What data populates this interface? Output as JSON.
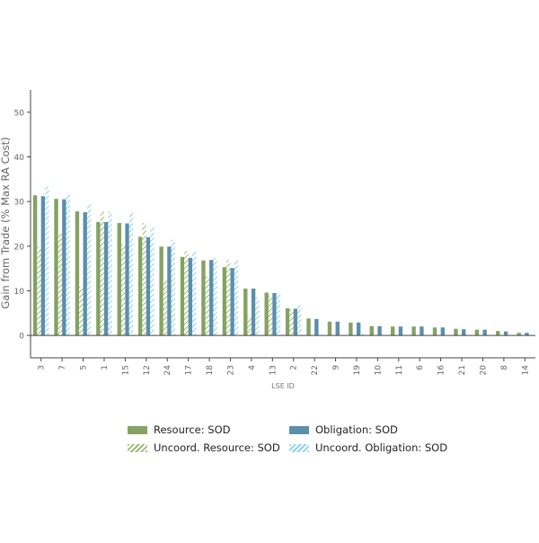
{
  "chart_data": {
    "type": "bar",
    "title": "",
    "xlabel": "LSE ID",
    "ylabel": "Gain from Trade (% Max RA Cost)",
    "ylim": [
      -5,
      55
    ],
    "yticks": [
      0,
      10,
      20,
      30,
      40,
      50
    ],
    "grid": false,
    "legend_position": "bottom",
    "categories": [
      "3",
      "7",
      "5",
      "1",
      "15",
      "12",
      "24",
      "17",
      "18",
      "23",
      "4",
      "13",
      "2",
      "22",
      "9",
      "19",
      "10",
      "11",
      "6",
      "16",
      "21",
      "20",
      "8",
      "14"
    ],
    "series": [
      {
        "name": "Resource: SOD",
        "color": "#84a261",
        "pattern": "solid",
        "values": [
          31.4,
          30.6,
          27.8,
          25.4,
          25.2,
          22.1,
          19.9,
          17.6,
          16.8,
          15.3,
          10.5,
          9.6,
          6.1,
          3.8,
          3.1,
          2.9,
          2.1,
          2.0,
          2.0,
          1.8,
          1.5,
          1.3,
          1.0,
          0.6
        ]
      },
      {
        "name": "Uncoord. Resource: SOD",
        "color": "#84a261",
        "pattern": "hatch",
        "values": [
          19.8,
          22.8,
          10.9,
          27.8,
          20.4,
          25.2,
          12.4,
          18.9,
          13.2,
          16.9,
          4.2,
          8.9,
          5.8,
          0,
          0,
          0,
          0,
          0,
          0,
          0,
          0,
          0,
          0,
          0
        ]
      },
      {
        "name": "Obligation: SOD",
        "color": "#5b8fab",
        "pattern": "solid",
        "values": [
          31.2,
          30.5,
          27.6,
          25.4,
          25.1,
          22.0,
          19.9,
          17.4,
          16.9,
          15.1,
          10.5,
          9.5,
          6.0,
          3.7,
          3.1,
          2.9,
          2.1,
          2.0,
          2.0,
          1.8,
          1.4,
          1.3,
          0.9,
          0.6
        ]
      },
      {
        "name": "Uncoord. Obligation: SOD",
        "color": "#8ecfee",
        "pattern": "hatch",
        "values": [
          33.3,
          31.8,
          29.5,
          27.8,
          27.4,
          24.3,
          21.4,
          18.8,
          17.3,
          17.0,
          8.5,
          9.4,
          6.8,
          0,
          0,
          0.4,
          0,
          0,
          0,
          0,
          0,
          0,
          0,
          0
        ]
      }
    ]
  }
}
